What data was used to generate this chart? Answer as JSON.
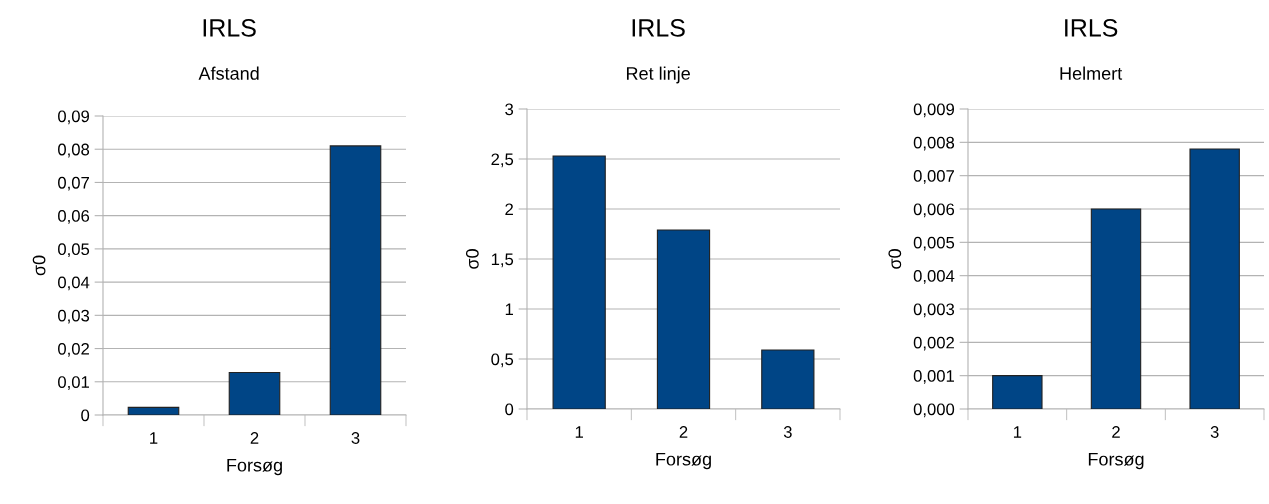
{
  "chart_data": [
    {
      "type": "bar",
      "title": "IRLS",
      "subtitle": "Afstand",
      "xlabel": "Forsøg",
      "ylabel": "σ0",
      "categories": [
        "1",
        "2",
        "3"
      ],
      "values": [
        0.0023,
        0.0128,
        0.081
      ],
      "color": "#004586",
      "ylim": [
        0,
        0.09
      ],
      "yticks": [
        {
          "value": 0,
          "label": "0"
        },
        {
          "value": 0.01,
          "label": "0,01"
        },
        {
          "value": 0.02,
          "label": "0,02"
        },
        {
          "value": 0.03,
          "label": "0,03"
        },
        {
          "value": 0.04,
          "label": "0,04"
        },
        {
          "value": 0.05,
          "label": "0,05"
        },
        {
          "value": 0.06,
          "label": "0,06"
        },
        {
          "value": 0.07,
          "label": "0,07"
        },
        {
          "value": 0.08,
          "label": "0,08"
        },
        {
          "value": 0.09,
          "label": "0,09"
        }
      ],
      "grid": "y"
    },
    {
      "type": "bar",
      "title": "IRLS",
      "subtitle": "Ret linje",
      "xlabel": "Forsøg",
      "ylabel": "σ0",
      "categories": [
        "1",
        "2",
        "3"
      ],
      "values": [
        2.53,
        1.79,
        0.59
      ],
      "color": "#004586",
      "ylim": [
        0,
        3
      ],
      "yticks": [
        0,
        {
          "value": 0.5,
          "label": "0,5"
        },
        1,
        {
          "value": 1.5,
          "label": "1,5"
        },
        2,
        {
          "value": 2.5,
          "label": "2,5"
        },
        3
      ],
      "grid": "y"
    },
    {
      "type": "bar",
      "title": "IRLS",
      "subtitle": "Helmert",
      "xlabel": "Forsøg",
      "ylabel": "σ0",
      "categories": [
        "1",
        "2",
        "3"
      ],
      "values": [
        0.001,
        0.006,
        0.0078
      ],
      "color": "#004586",
      "ylim": [
        0,
        0.009
      ],
      "yticks": [
        {
          "value": 0,
          "label": "0,000"
        },
        {
          "value": 0.001,
          "label": "0,001"
        },
        {
          "value": 0.002,
          "label": "0,002"
        },
        {
          "value": 0.003,
          "label": "0,003"
        },
        {
          "value": 0.004,
          "label": "0,004"
        },
        {
          "value": 0.005,
          "label": "0,005"
        },
        {
          "value": 0.006,
          "label": "0,006"
        },
        {
          "value": 0.007,
          "label": "0,007"
        },
        {
          "value": 0.008,
          "label": "0,008"
        },
        {
          "value": 0.009,
          "label": "0,009"
        }
      ],
      "grid": "y"
    }
  ]
}
